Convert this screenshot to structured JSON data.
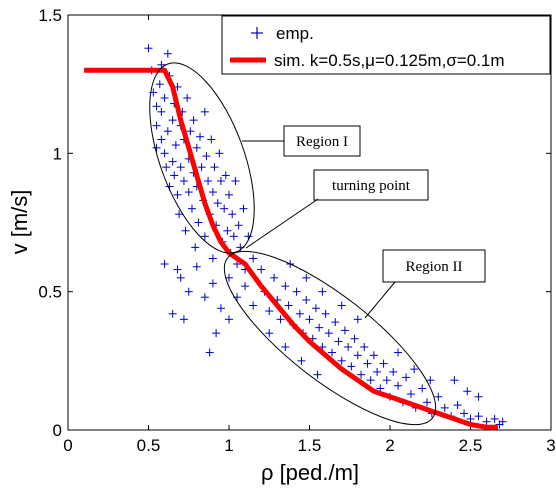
{
  "chart_data": {
    "type": "scatter",
    "xlabel": "ρ [ped./m]",
    "ylabel": "v [m/s]",
    "xlim": [
      0,
      3
    ],
    "ylim": [
      0,
      1.5
    ],
    "x_ticks": [
      "0",
      "0.5",
      "1",
      "1.5",
      "2",
      "2.5",
      "3"
    ],
    "y_ticks": [
      "0",
      "0.5",
      "1",
      "1.5"
    ],
    "legend_position": "top-right",
    "colors": {
      "emp": "#0000cc",
      "sim": "#ff0000"
    },
    "series": [
      {
        "name": "emp.",
        "kind": "scatter",
        "marker": "+",
        "points": [
          [
            0.5,
            1.38
          ],
          [
            0.52,
            1.3
          ],
          [
            0.53,
            1.22
          ],
          [
            0.55,
            1.1
          ],
          [
            0.55,
            1.17
          ],
          [
            0.57,
            1.25
          ],
          [
            0.58,
            1.05
          ],
          [
            0.58,
            1.15
          ],
          [
            0.6,
            1.0
          ],
          [
            0.6,
            1.2
          ],
          [
            0.61,
            0.95
          ],
          [
            0.62,
            1.08
          ],
          [
            0.63,
            1.28
          ],
          [
            0.63,
            0.88
          ],
          [
            0.65,
            1.12
          ],
          [
            0.65,
            0.97
          ],
          [
            0.66,
            1.18
          ],
          [
            0.67,
            1.03
          ],
          [
            0.68,
            0.85
          ],
          [
            0.68,
            1.24
          ],
          [
            0.69,
            0.78
          ],
          [
            0.7,
            1.1
          ],
          [
            0.7,
            0.95
          ],
          [
            0.71,
            1.15
          ],
          [
            0.72,
            0.9
          ],
          [
            0.72,
            1.05
          ],
          [
            0.73,
            0.72
          ],
          [
            0.74,
            1.2
          ],
          [
            0.75,
            0.98
          ],
          [
            0.75,
            0.86
          ],
          [
            0.76,
            1.08
          ],
          [
            0.77,
            0.8
          ],
          [
            0.78,
            1.12
          ],
          [
            0.78,
            0.93
          ],
          [
            0.79,
            0.66
          ],
          [
            0.8,
            1.02
          ],
          [
            0.8,
            0.88
          ],
          [
            0.81,
            0.75
          ],
          [
            0.82,
            1.06
          ],
          [
            0.83,
            0.95
          ],
          [
            0.84,
            0.83
          ],
          [
            0.85,
            1.15
          ],
          [
            0.85,
            0.7
          ],
          [
            0.86,
            0.99
          ],
          [
            0.87,
            0.9
          ],
          [
            0.88,
            0.78
          ],
          [
            0.89,
            1.05
          ],
          [
            0.9,
            0.86
          ],
          [
            0.9,
            0.62
          ],
          [
            0.91,
            0.95
          ],
          [
            0.92,
            0.74
          ],
          [
            0.93,
            0.82
          ],
          [
            0.94,
            1.0
          ],
          [
            0.95,
            0.9
          ],
          [
            0.96,
            0.68
          ],
          [
            0.97,
            0.8
          ],
          [
            0.98,
            0.92
          ],
          [
            0.99,
            0.72
          ],
          [
            1.0,
            0.85
          ],
          [
            1.01,
            0.64
          ],
          [
            1.02,
            0.78
          ],
          [
            1.03,
            0.7
          ],
          [
            1.04,
            0.9
          ],
          [
            1.05,
            0.6
          ],
          [
            1.06,
            0.74
          ],
          [
            1.07,
            0.66
          ],
          [
            1.09,
            0.8
          ],
          [
            1.1,
            0.58
          ],
          [
            1.12,
            0.7
          ],
          [
            1.15,
            0.62
          ],
          [
            0.7,
            0.55
          ],
          [
            0.75,
            0.5
          ],
          [
            0.8,
            0.59
          ],
          [
            0.85,
            0.48
          ],
          [
            0.9,
            0.53
          ],
          [
            0.65,
            0.42
          ],
          [
            0.72,
            0.4
          ],
          [
            0.6,
            0.6
          ],
          [
            0.68,
            0.58
          ],
          [
            0.95,
            0.44
          ],
          [
            1.0,
            0.55
          ],
          [
            1.05,
            0.48
          ],
          [
            1.1,
            0.52
          ],
          [
            1.15,
            0.45
          ],
          [
            1.2,
            0.58
          ],
          [
            1.22,
            0.5
          ],
          [
            1.25,
            0.43
          ],
          [
            1.28,
            0.55
          ],
          [
            1.3,
            0.47
          ],
          [
            1.32,
            0.4
          ],
          [
            1.35,
            0.52
          ],
          [
            1.37,
            0.45
          ],
          [
            1.4,
            0.38
          ],
          [
            1.42,
            0.5
          ],
          [
            1.44,
            0.42
          ],
          [
            1.46,
            0.35
          ],
          [
            1.48,
            0.47
          ],
          [
            1.5,
            0.4
          ],
          [
            1.52,
            0.33
          ],
          [
            1.54,
            0.44
          ],
          [
            1.56,
            0.37
          ],
          [
            1.58,
            0.3
          ],
          [
            1.6,
            0.42
          ],
          [
            1.62,
            0.35
          ],
          [
            1.64,
            0.28
          ],
          [
            1.66,
            0.39
          ],
          [
            1.68,
            0.32
          ],
          [
            1.7,
            0.25
          ],
          [
            1.72,
            0.36
          ],
          [
            1.74,
            0.3
          ],
          [
            1.76,
            0.23
          ],
          [
            1.78,
            0.33
          ],
          [
            1.8,
            0.27
          ],
          [
            1.82,
            0.2
          ],
          [
            1.84,
            0.3
          ],
          [
            1.86,
            0.24
          ],
          [
            1.88,
            0.18
          ],
          [
            1.9,
            0.27
          ],
          [
            1.92,
            0.21
          ],
          [
            1.94,
            0.15
          ],
          [
            1.96,
            0.24
          ],
          [
            1.98,
            0.18
          ],
          [
            2.0,
            0.12
          ],
          [
            2.02,
            0.21
          ],
          [
            2.05,
            0.16
          ],
          [
            2.08,
            0.1
          ],
          [
            2.1,
            0.19
          ],
          [
            2.13,
            0.13
          ],
          [
            2.16,
            0.08
          ],
          [
            2.2,
            0.15
          ],
          [
            2.23,
            0.1
          ],
          [
            2.26,
            0.06
          ],
          [
            2.3,
            0.12
          ],
          [
            2.34,
            0.08
          ],
          [
            2.38,
            0.05
          ],
          [
            2.42,
            0.09
          ],
          [
            2.46,
            0.06
          ],
          [
            2.5,
            0.04
          ],
          [
            2.55,
            0.05
          ],
          [
            2.6,
            0.03
          ],
          [
            2.65,
            0.04
          ],
          [
            2.68,
            0.02
          ],
          [
            2.7,
            0.03
          ],
          [
            2.05,
            0.28
          ],
          [
            2.15,
            0.22
          ],
          [
            2.25,
            0.18
          ],
          [
            1.35,
            0.3
          ],
          [
            1.45,
            0.25
          ],
          [
            1.55,
            0.2
          ],
          [
            1.25,
            0.35
          ],
          [
            0.92,
            0.35
          ],
          [
            1.0,
            0.4
          ],
          [
            0.88,
            0.28
          ],
          [
            1.38,
            0.6
          ],
          [
            1.48,
            0.55
          ],
          [
            1.58,
            0.5
          ],
          [
            1.7,
            0.45
          ],
          [
            1.8,
            0.4
          ],
          [
            2.4,
            0.18
          ],
          [
            2.48,
            0.14
          ],
          [
            2.55,
            0.12
          ],
          [
            0.58,
            1.32
          ],
          [
            0.62,
            1.36
          ],
          [
            0.55,
            1.02
          ],
          [
            0.66,
            0.92
          ]
        ]
      },
      {
        "name": "sim. k=0.5s,μ=0.125m,σ=0.1m",
        "kind": "line",
        "points": [
          [
            0.1,
            1.3
          ],
          [
            0.6,
            1.3
          ],
          [
            0.65,
            1.24
          ],
          [
            0.7,
            1.12
          ],
          [
            0.75,
            1.02
          ],
          [
            0.8,
            0.92
          ],
          [
            0.85,
            0.82
          ],
          [
            0.9,
            0.74
          ],
          [
            0.95,
            0.68
          ],
          [
            1.0,
            0.64
          ],
          [
            1.05,
            0.62
          ],
          [
            1.1,
            0.6
          ],
          [
            1.15,
            0.56
          ],
          [
            1.2,
            0.52
          ],
          [
            1.3,
            0.45
          ],
          [
            1.4,
            0.38
          ],
          [
            1.5,
            0.32
          ],
          [
            1.6,
            0.27
          ],
          [
            1.7,
            0.22
          ],
          [
            1.8,
            0.18
          ],
          [
            1.9,
            0.14
          ],
          [
            2.0,
            0.12
          ],
          [
            2.1,
            0.1
          ],
          [
            2.2,
            0.08
          ],
          [
            2.3,
            0.06
          ],
          [
            2.4,
            0.04
          ],
          [
            2.5,
            0.02
          ],
          [
            2.6,
            0.01
          ],
          [
            2.67,
            0.01
          ]
        ]
      }
    ],
    "annotations": {
      "region_1": "Region I",
      "region_2": "Region II",
      "turning_point": "turning point"
    }
  }
}
